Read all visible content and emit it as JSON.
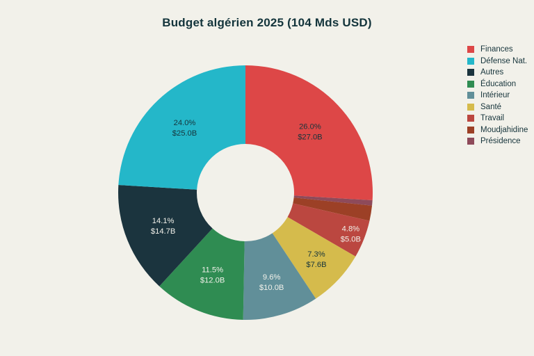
{
  "title": "Budget algérien 2025 (104 Mds USD)",
  "background_color": "#F2F1EA",
  "title_color": "#13343B",
  "legend_text_color": "#16343B",
  "chart_data": {
    "type": "pie",
    "donut": true,
    "hole_ratio": 0.38,
    "title": "Budget algérien 2025 (104 Mds USD)",
    "total_busd": 104,
    "legend_position": "right",
    "start_angle_deg": 0,
    "label_pos_default": 0.51,
    "slices": [
      {
        "label": "Finances",
        "value_busd": 27.0,
        "pct": 26.0,
        "pct_label": "26.0%",
        "value_label": "$27.0B",
        "color": "#DD4747",
        "text_color": "#16343B",
        "show_label": true
      },
      {
        "label": "Défense Nat.",
        "value_busd": 25.0,
        "pct": 24.0,
        "pct_label": "24.0%",
        "value_label": "$25.0B",
        "color": "#24B7C9",
        "text_color": "#16343B",
        "show_label": true
      },
      {
        "label": "Autres",
        "value_busd": 14.7,
        "pct": 14.1,
        "pct_label": "14.1%",
        "value_label": "$14.7B",
        "color": "#1B343E",
        "text_color": "#F2F1EA",
        "show_label": true
      },
      {
        "label": "Éducation",
        "value_busd": 12.0,
        "pct": 11.5,
        "pct_label": "11.5%",
        "value_label": "$12.0B",
        "color": "#2F8C52",
        "text_color": "#F2F1EA",
        "show_label": true
      },
      {
        "label": "Intérieur",
        "value_busd": 10.0,
        "pct": 9.6,
        "pct_label": "9.6%",
        "value_label": "$10.0B",
        "color": "#618F99",
        "text_color": "#F2F1EA",
        "show_label": true,
        "label_pos": 0.57
      },
      {
        "label": "Santé",
        "value_busd": 7.6,
        "pct": 7.3,
        "pct_label": "7.3%",
        "value_label": "$7.6B",
        "color": "#D5BB4C",
        "text_color": "#16343B",
        "show_label": true,
        "label_pos": 0.62
      },
      {
        "label": "Travail",
        "value_busd": 5.0,
        "pct": 4.8,
        "pct_label": "4.8%",
        "value_label": "$5.0B",
        "color": "#BB4740",
        "text_color": "#F2F1EA",
        "show_label": true,
        "label_pos": 0.82
      },
      {
        "label": "Moudjahidine",
        "value_busd": 2.0,
        "pct": 1.9,
        "pct_label": "1.9%",
        "value_label": "$2.0B",
        "color": "#9C4026",
        "text_color": "#F2F1EA",
        "show_label": false
      },
      {
        "label": "Présidence",
        "value_busd": 0.7,
        "pct": 0.7,
        "pct_label": "0.7%",
        "value_label": "$0.7B",
        "color": "#8E4A5A",
        "text_color": "#F2F1EA",
        "show_label": false
      }
    ],
    "draw_order_clockwise": [
      0,
      8,
      7,
      6,
      5,
      4,
      3,
      2,
      1
    ]
  }
}
